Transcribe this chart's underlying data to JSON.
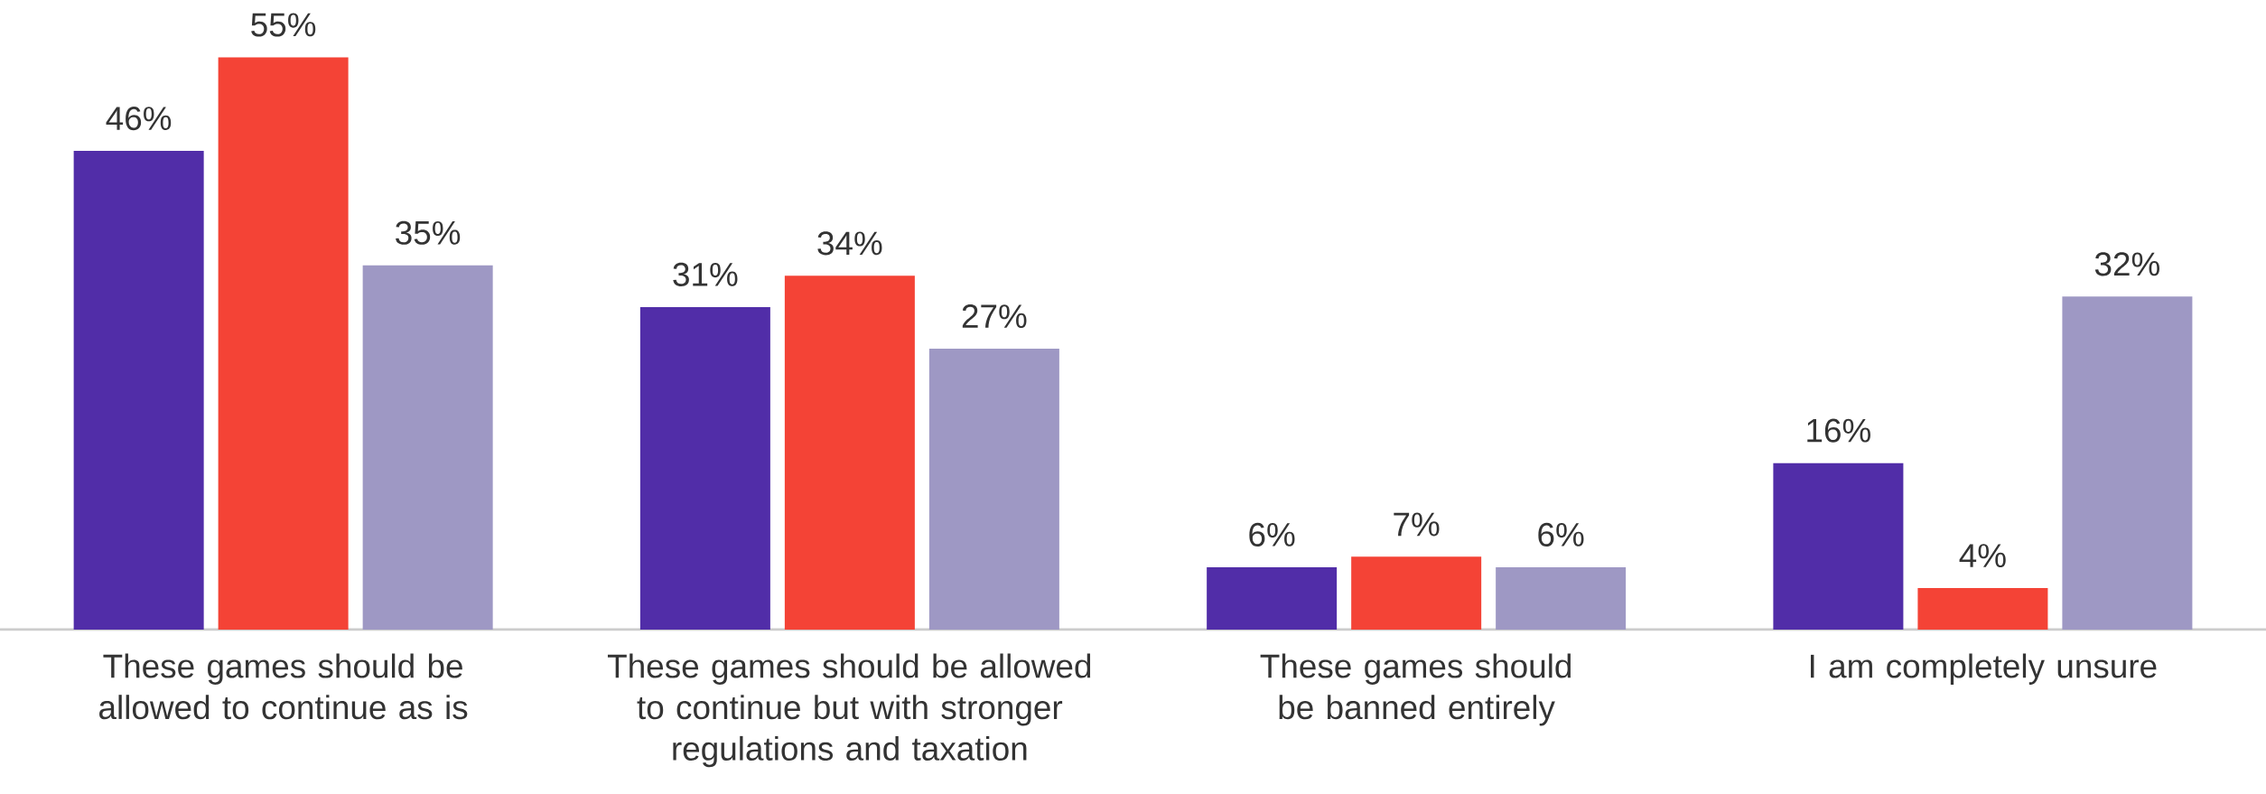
{
  "chart_data": {
    "type": "bar",
    "categories": [
      "These games should be allowed to continue as is",
      "These games should be allowed to continue but with stronger regulations and taxation",
      "These games should be banned entirely",
      "I am completely unsure"
    ],
    "series": [
      {
        "color": "#512da8",
        "values": [
          46,
          31,
          6,
          16
        ],
        "value_labels": [
          "46%",
          "31%",
          "6%",
          "16%"
        ]
      },
      {
        "color": "#f44336",
        "values": [
          55,
          34,
          7,
          4
        ],
        "value_labels": [
          "55%",
          "34%",
          "7%",
          "4%"
        ]
      },
      {
        "color": "#9e98c4",
        "values": [
          35,
          27,
          6,
          32
        ],
        "value_labels": [
          "35%",
          "27%",
          "6%",
          "32%"
        ]
      }
    ]
  }
}
